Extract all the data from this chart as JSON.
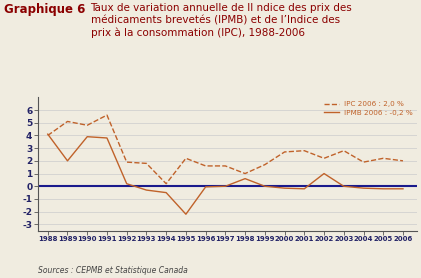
{
  "years": [
    1988,
    1989,
    1990,
    1991,
    1992,
    1993,
    1994,
    1995,
    1996,
    1997,
    1998,
    1999,
    2000,
    2001,
    2002,
    2003,
    2004,
    2005,
    2006
  ],
  "ipc": [
    4.0,
    5.1,
    4.8,
    5.6,
    1.9,
    1.8,
    0.2,
    2.2,
    1.6,
    1.6,
    1.0,
    1.7,
    2.7,
    2.8,
    2.2,
    2.8,
    1.9,
    2.2,
    2.0
  ],
  "ipmb": [
    4.1,
    2.0,
    3.9,
    3.8,
    0.2,
    -0.3,
    -0.5,
    -2.2,
    -0.05,
    0.0,
    0.6,
    0.0,
    -0.15,
    -0.2,
    1.0,
    0.0,
    -0.15,
    -0.2,
    -0.2
  ],
  "title_bold": "Graphique 6",
  "title_main": "Taux de variation annuelle de lI ndice des prix des\nmédicaments brevetés (IPMB) et de l’Indice des\nprix à la consommation (IPC), 1988-2006",
  "legend_ipc": "IPC 2006 : 2,0 %",
  "legend_ipmb": "IPMB 2006 : -0,2 %",
  "source": "Sources : CEPMB et Statistique Canada",
  "ylim": [
    -3.5,
    7.0
  ],
  "yticks": [
    -3,
    -2,
    -1,
    0,
    1,
    2,
    3,
    4,
    5,
    6
  ],
  "line_color": "#c0622a",
  "navy_color": "#1a1a8c",
  "bg_color": "#f0ece0",
  "title_color_bold": "#8b0000",
  "title_color_main": "#8b0000",
  "tick_color": "#222266",
  "source_color": "#444444"
}
